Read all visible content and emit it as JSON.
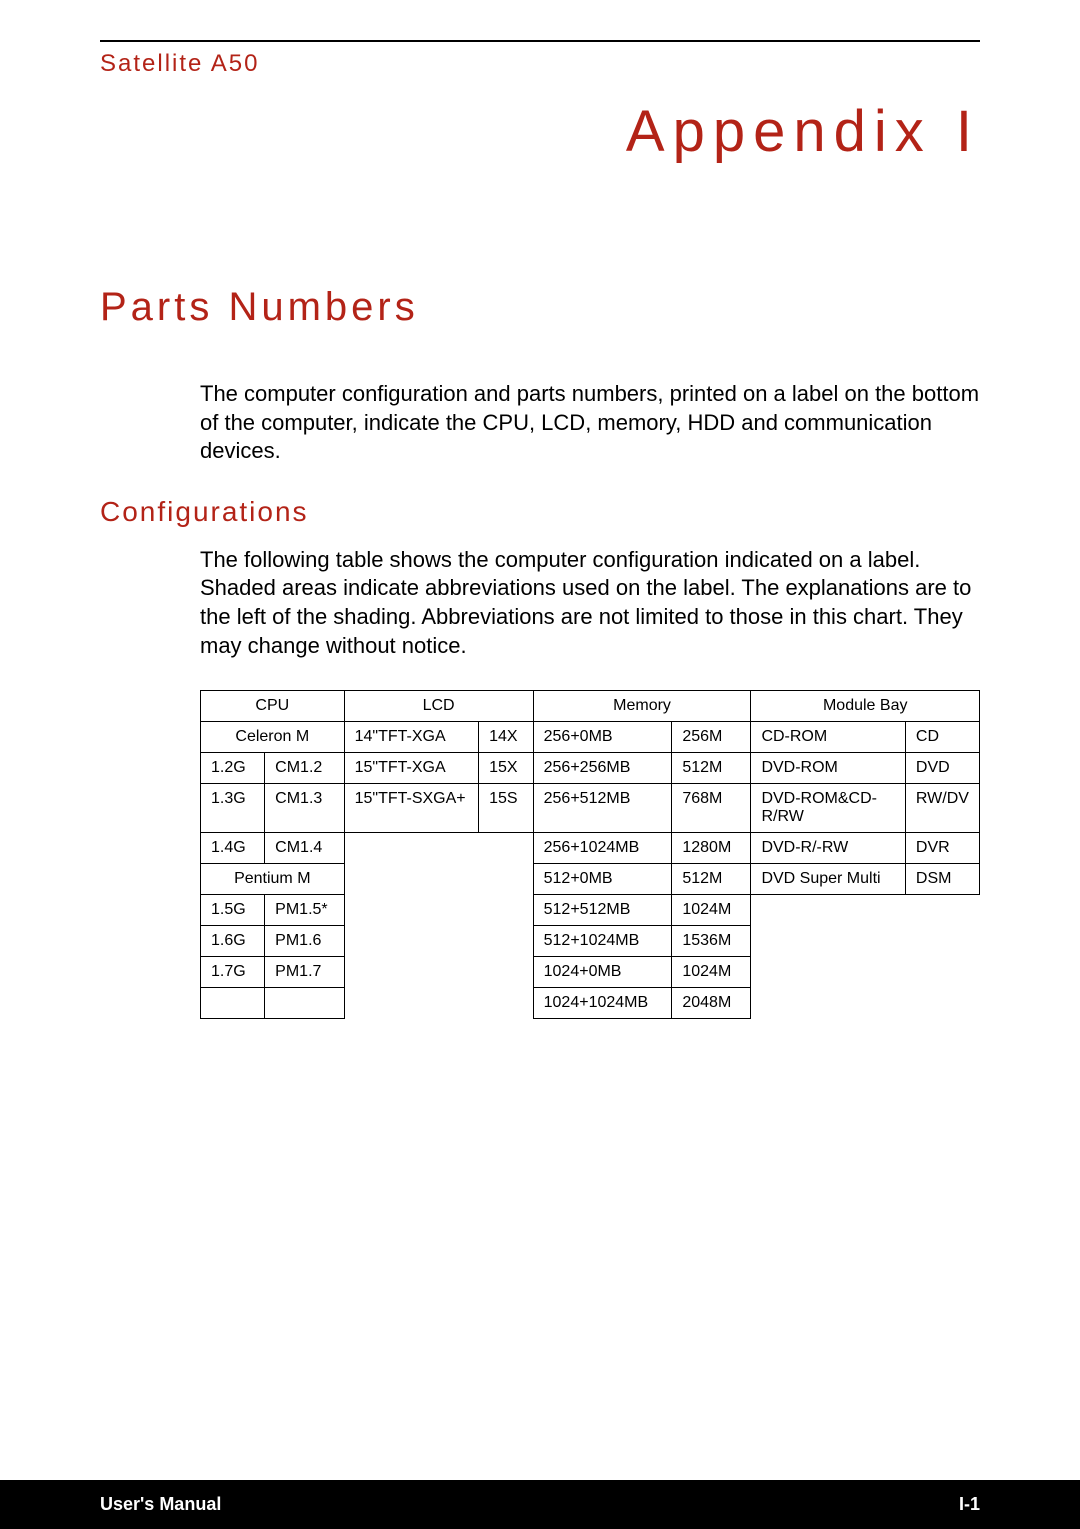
{
  "header": {
    "product": "Satellite A50",
    "appendix": "Appendix I"
  },
  "sections": {
    "title": "Parts Numbers",
    "intro": "The computer configuration and parts numbers, printed on a label on the bottom of the computer, indicate the CPU, LCD, memory, HDD and communication devices.",
    "config_heading": "Configurations",
    "config_text": "The following table shows the computer configuration indicated on a label. Shaded areas indicate abbreviations used on the label. The explanations are to the left of the shading. Abbreviations are not limited to those in this chart. They may change without notice."
  },
  "table": {
    "headers": {
      "cpu": "CPU",
      "lcd": "LCD",
      "memory": "Memory",
      "module_bay": "Module Bay"
    },
    "cpu_group1": "Celeron M",
    "cpu_group2": "Pentium M",
    "rows": {
      "r1": {
        "c1": "1.2G",
        "c2": "CM1.2",
        "l1": "14\"TFT-XGA",
        "l2": "14X",
        "m1": "256+0MB",
        "m2": "256M",
        "b1": "CD-ROM",
        "b2": "CD"
      },
      "r2": {
        "c1": "1.3G",
        "c2": "CM1.3",
        "l1": "15\"TFT-XGA",
        "l2": "15X",
        "m1": "256+256MB",
        "m2": "512M",
        "b1": "DVD-ROM",
        "b2": "DVD"
      },
      "r3": {
        "c1": "1.4G",
        "c2": "CM1.4",
        "l1": "15\"TFT-SXGA+",
        "l2": "15S",
        "m1": "256+512MB",
        "m2": "768M",
        "b1": "DVD-ROM&CD-R/RW",
        "b2": "RW/DV"
      },
      "r4": {
        "m1": "256+1024MB",
        "m2": "1280M",
        "b1": "DVD-R/-RW",
        "b2": "DVR"
      },
      "r5": {
        "c1": "1.5G",
        "c2": "PM1.5*",
        "m1": "512+0MB",
        "m2": "512M",
        "b1": "DVD Super Multi",
        "b2": "DSM"
      },
      "r6": {
        "c1": "1.6G",
        "c2": "PM1.6",
        "m1": "512+512MB",
        "m2": "1024M"
      },
      "r7": {
        "c1": "1.7G",
        "c2": "PM1.7",
        "m1": "512+1024MB",
        "m2": "1536M"
      },
      "r8": {
        "m1": "1024+0MB",
        "m2": "1024M"
      },
      "r9": {
        "m1": "1024+1024MB",
        "m2": "2048M"
      }
    }
  },
  "footer": {
    "left": "User's Manual",
    "right": "I-1"
  },
  "colors": {
    "accent": "#b32317",
    "text": "#000000",
    "footer_bg": "#000000",
    "footer_text": "#ffffff",
    "border": "#000000"
  }
}
